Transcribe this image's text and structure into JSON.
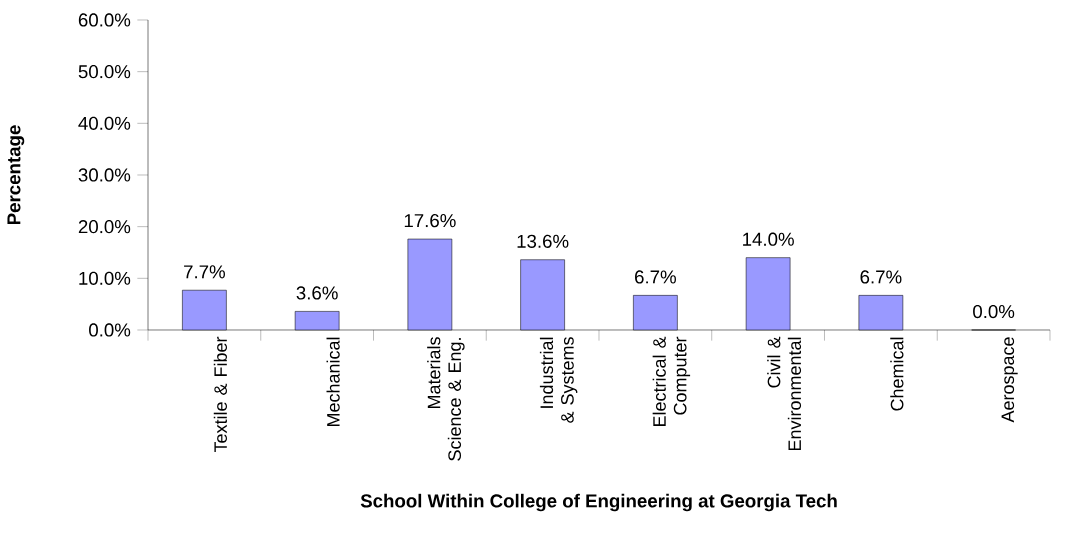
{
  "chart_data": {
    "type": "bar",
    "xlabel": "School Within College of Engineering at Georgia Tech",
    "ylabel": "Percentage",
    "categories": [
      "Textile & Fiber",
      "Mechanical",
      "Materials Science & Eng.",
      "Industrial & Systems",
      "Electrical & Computer",
      "Civil & Environmental",
      "Chemical",
      "Aerospace"
    ],
    "values": [
      7.7,
      3.6,
      17.6,
      13.6,
      6.7,
      14.0,
      6.7,
      0.0
    ],
    "value_labels": [
      "7.7%",
      "3.6%",
      "17.6%",
      "13.6%",
      "6.7%",
      "14.0%",
      "6.7%",
      "0.0%"
    ],
    "color": "#9999ff",
    "ylim": [
      0,
      60
    ],
    "yticks": [
      {
        "value": 0,
        "label": "0.0%"
      },
      {
        "value": 10,
        "label": "10.0%"
      },
      {
        "value": 20,
        "label": "20.0%"
      },
      {
        "value": 30,
        "label": "30.0%"
      },
      {
        "value": 40,
        "label": "40.0%"
      },
      {
        "value": 50,
        "label": "50.0%"
      },
      {
        "value": 60,
        "label": "60.0%"
      }
    ],
    "grid": false
  }
}
